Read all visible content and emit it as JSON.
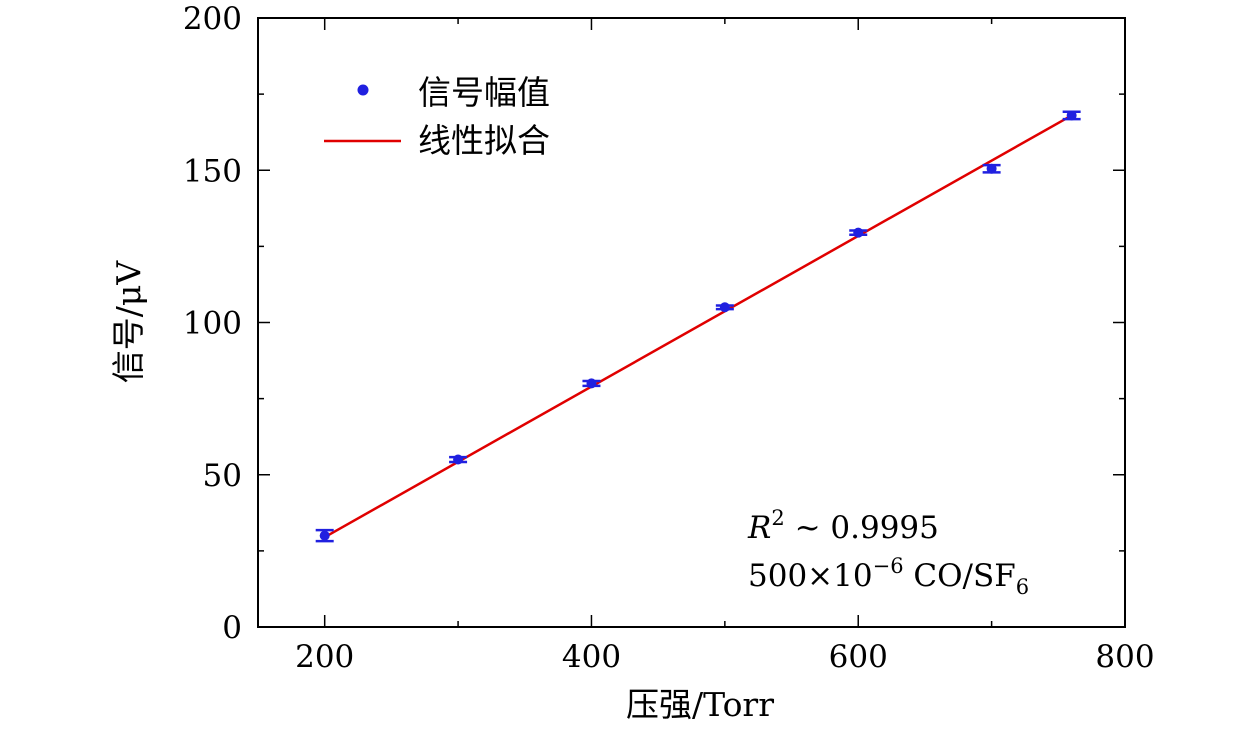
{
  "chart_data": {
    "type": "scatter",
    "xlabel": "压强/Torr",
    "ylabel": "信号/μV",
    "xlim": [
      150,
      800
    ],
    "ylim": [
      0,
      200
    ],
    "x_ticks": [
      200,
      400,
      600,
      800
    ],
    "y_ticks": [
      0,
      50,
      100,
      150,
      200
    ],
    "grid": false,
    "legend": {
      "placement": "top-left",
      "entries": [
        "信号幅值",
        "线性拟合"
      ]
    },
    "series": [
      {
        "name": "信号幅值",
        "kind": "scatter-errorbar",
        "color": "#2020e0",
        "x": [
          200,
          300,
          400,
          500,
          600,
          700,
          760
        ],
        "y": [
          30.0,
          55.0,
          80.0,
          105.0,
          129.5,
          150.5,
          168.0
        ],
        "error": [
          1.8,
          0.8,
          0.8,
          0.6,
          0.7,
          1.2,
          1.2
        ]
      },
      {
        "name": "线性拟合",
        "kind": "line",
        "color": "#e00000",
        "x": [
          200,
          760
        ],
        "y": [
          29.5,
          168.0
        ]
      }
    ],
    "annotations": [
      "R² ~ 0.9995",
      "500×10⁻⁶ CO/SF₆"
    ]
  },
  "annotation": {
    "r2_symbol": "R",
    "r2_power": "2",
    "r2_value": " ~ 0.9995",
    "conc_value": "500×10",
    "conc_power": "−6",
    "conc_species": " CO/SF",
    "conc_subscript": "6"
  }
}
